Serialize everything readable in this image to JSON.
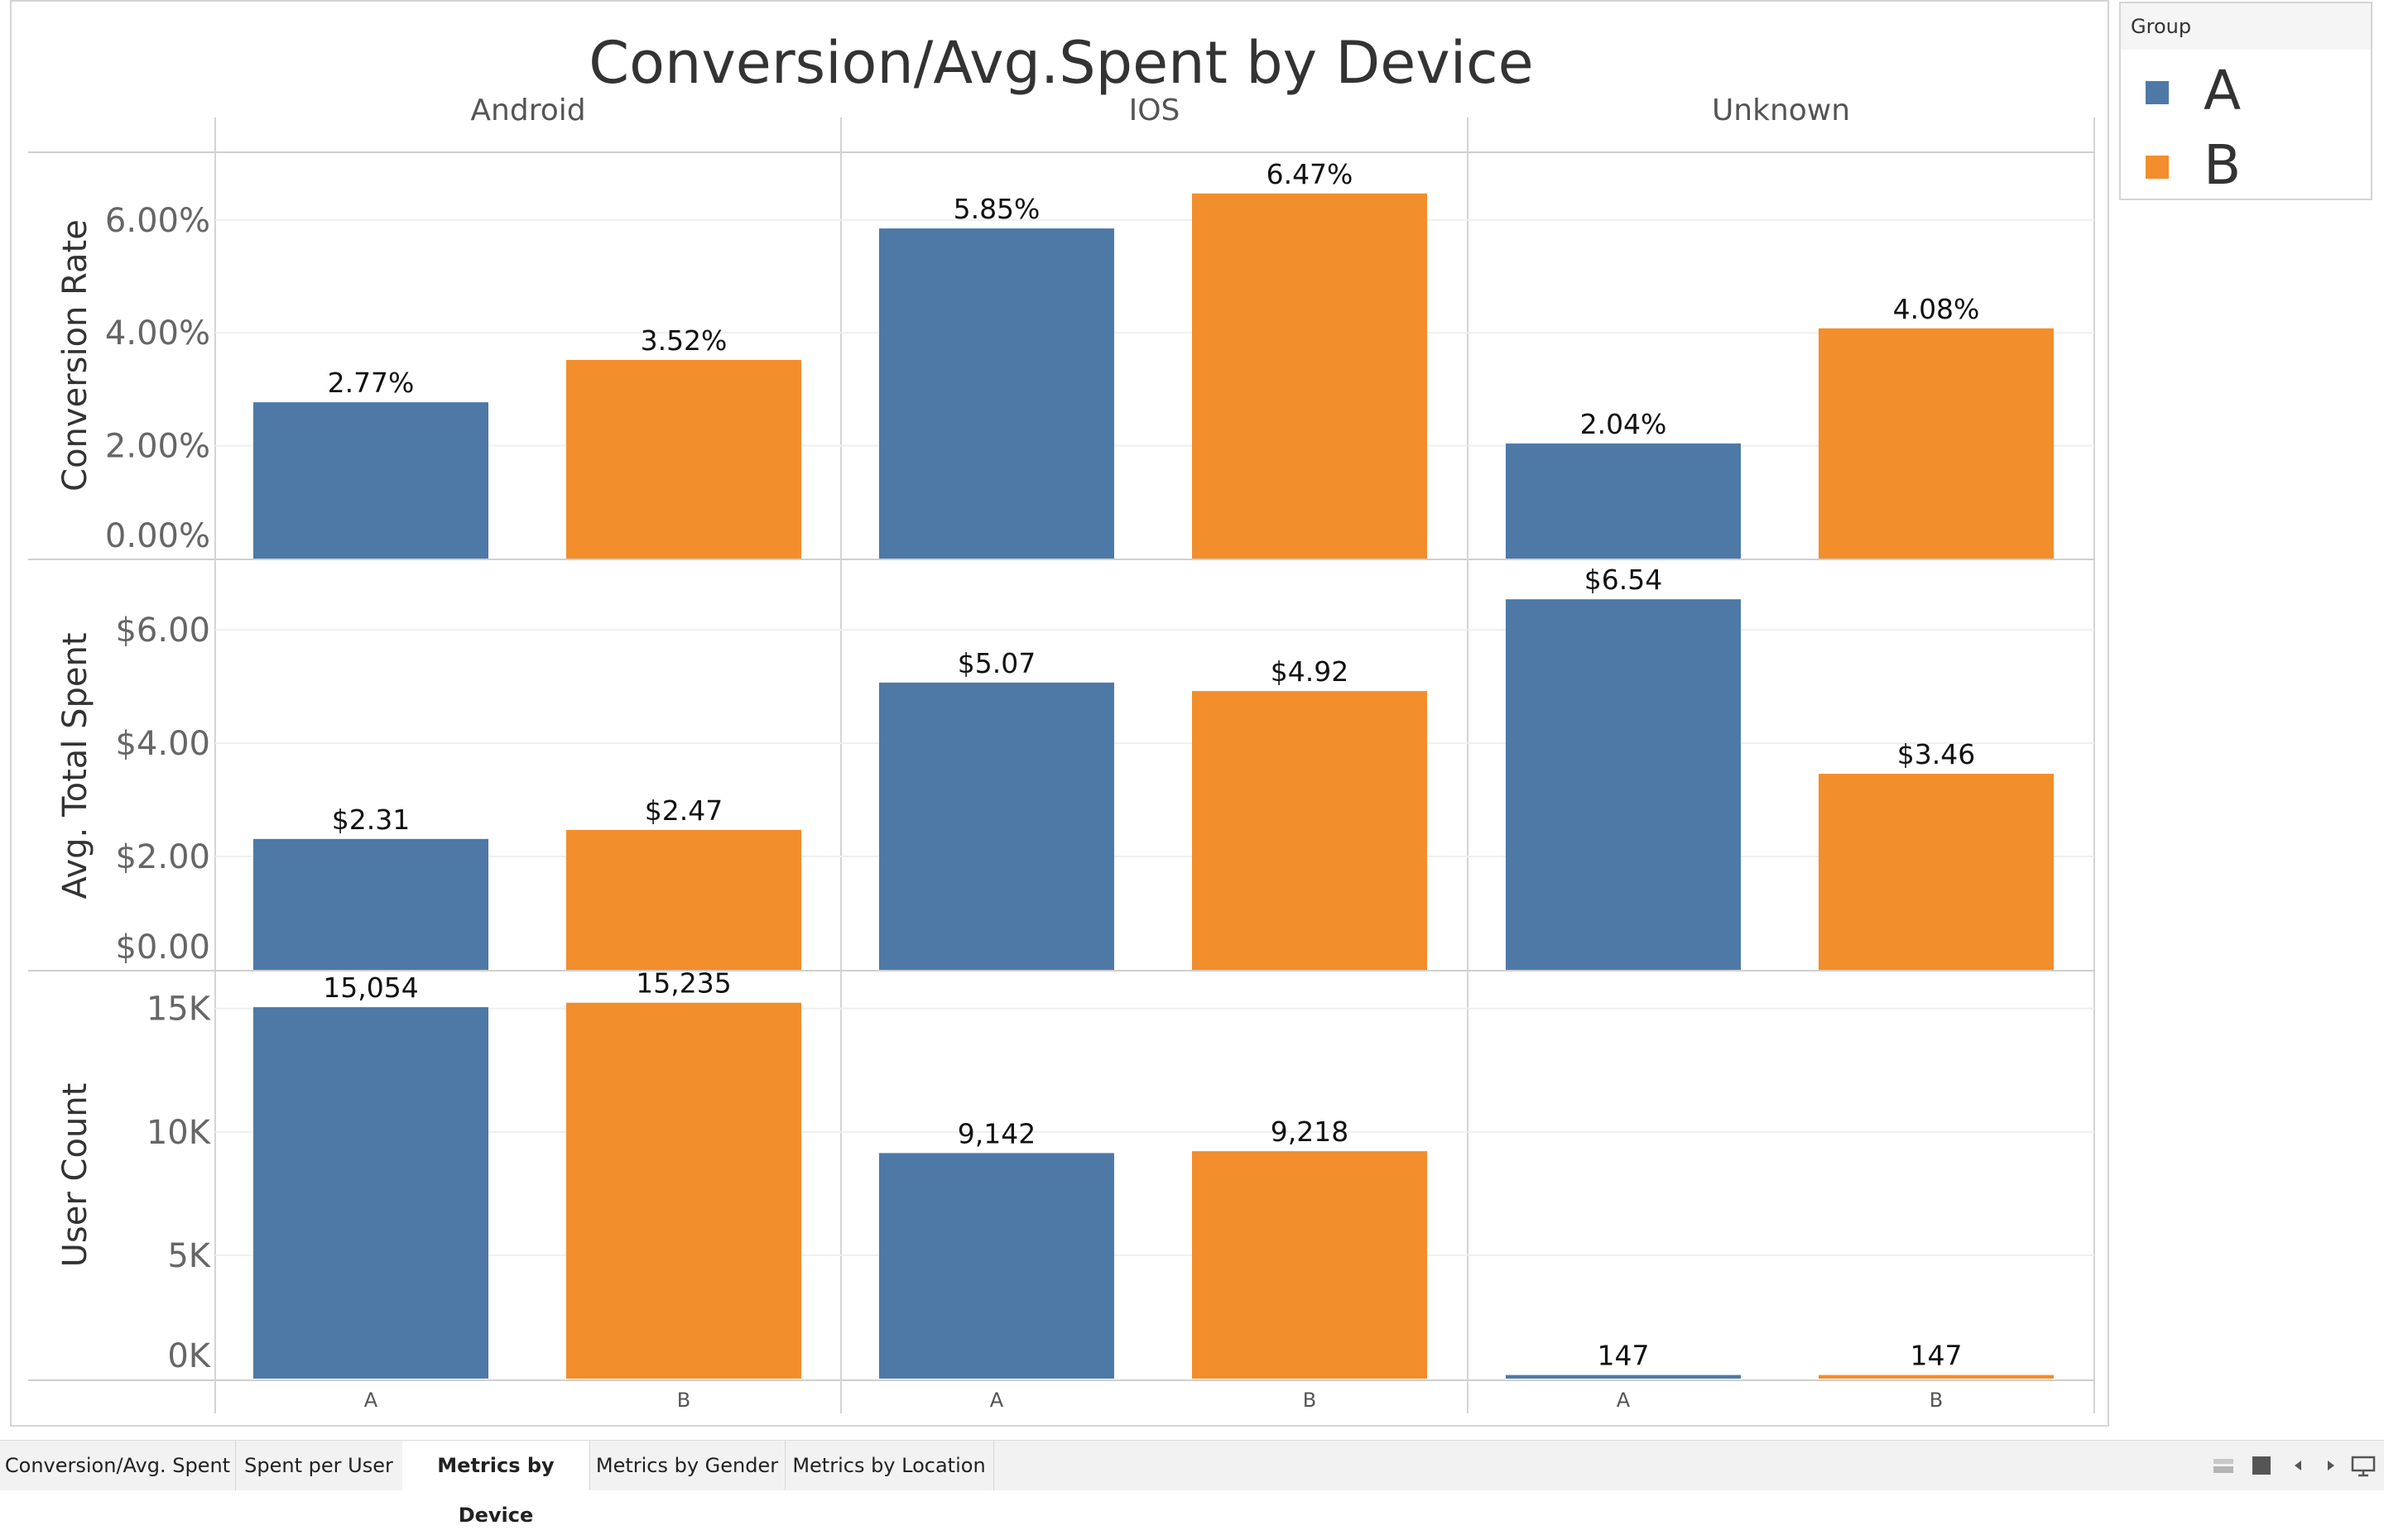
{
  "chart_data": {
    "type": "bar",
    "title": "Conversion/Avg.Spent by Device",
    "columns": [
      "Android",
      "IOS",
      "Unknown"
    ],
    "categories": [
      "A",
      "B"
    ],
    "colors": {
      "A": "#4e79a7",
      "B": "#f28e2b"
    },
    "grid": true,
    "legend": {
      "title": "Group",
      "placement": "right",
      "entries": [
        "A",
        "B"
      ]
    },
    "rows": [
      {
        "measure": "Conversion Rate",
        "ylim": [
          0,
          7.2
        ],
        "ticks": [
          0,
          2,
          4,
          6
        ],
        "tick_labels": [
          "0.00%",
          "2.00%",
          "4.00%",
          "6.00%"
        ],
        "values": {
          "Android": [
            2.77,
            3.52
          ],
          "IOS": [
            5.85,
            6.47
          ],
          "Unknown": [
            2.04,
            4.08
          ]
        },
        "labels": {
          "Android": [
            "2.77%",
            "3.52%"
          ],
          "IOS": [
            "5.85%",
            "6.47%"
          ],
          "Unknown": [
            "2.04%",
            "4.08%"
          ]
        }
      },
      {
        "measure": "Avg. Total Spent",
        "ylim": [
          0,
          7.2
        ],
        "ticks": [
          0,
          2,
          4,
          6
        ],
        "tick_labels": [
          "$0.00",
          "$2.00",
          "$4.00",
          "$6.00"
        ],
        "values": {
          "Android": [
            2.31,
            2.47
          ],
          "IOS": [
            5.07,
            4.92
          ],
          "Unknown": [
            6.54,
            3.46
          ]
        },
        "labels": {
          "Android": [
            "$2.31",
            "$2.47"
          ],
          "IOS": [
            "$5.07",
            "$4.92"
          ],
          "Unknown": [
            "$6.54",
            "$3.46"
          ]
        }
      },
      {
        "measure": "User Count",
        "ylim": [
          0,
          16500
        ],
        "ticks": [
          0,
          5000,
          10000,
          15000
        ],
        "tick_labels": [
          "0K",
          "5K",
          "10K",
          "15K"
        ],
        "values": {
          "Android": [
            15054,
            15235
          ],
          "IOS": [
            9142,
            9218
          ],
          "Unknown": [
            147,
            147
          ]
        },
        "labels": {
          "Android": [
            "15,054",
            "15,235"
          ],
          "IOS": [
            "9,142",
            "9,218"
          ],
          "Unknown": [
            "147",
            "147"
          ]
        }
      }
    ]
  },
  "tabs": [
    {
      "label": "Conversion/Avg. Spent",
      "active": false
    },
    {
      "label": "Spent per User",
      "active": false
    },
    {
      "label": "Metrics by Device",
      "active": true
    },
    {
      "label": "Metrics by Gender",
      "active": false
    },
    {
      "label": "Metrics by Location",
      "active": false
    }
  ],
  "nav_icons": [
    "grid-view-icon",
    "single-view-icon",
    "previous-arrow-icon",
    "next-arrow-icon",
    "presentation-icon"
  ]
}
